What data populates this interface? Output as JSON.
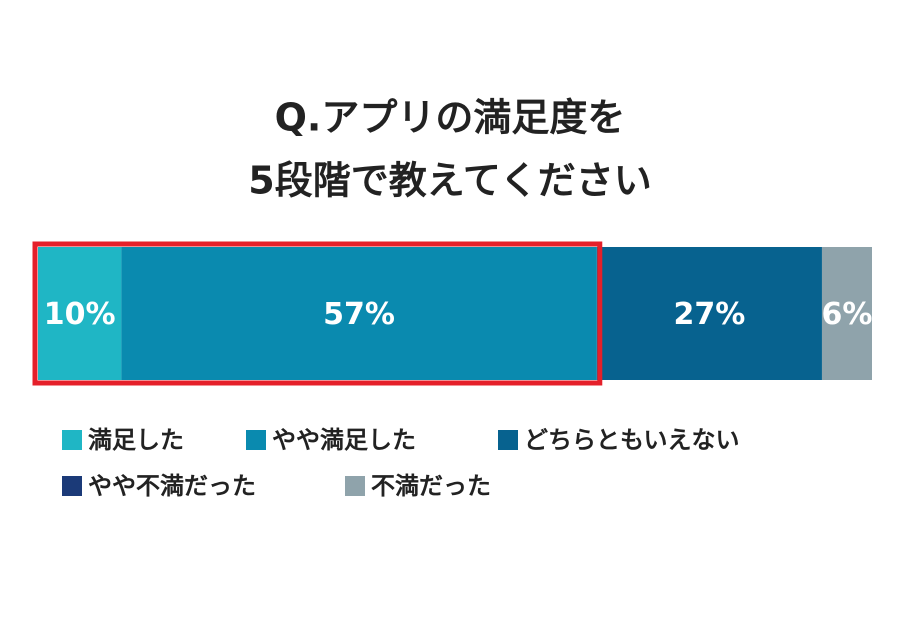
{
  "chart_data": {
    "type": "stacked-bar-horizontal",
    "title": [
      "Q.アプリの満足度を",
      "5段階で教えてください"
    ],
    "xlim": [
      0,
      100
    ],
    "series": [
      {
        "name": "満足した",
        "color": "#1fb6c5",
        "values": [
          10
        ],
        "value_labels": [
          "10%"
        ]
      },
      {
        "name": "やや満足した",
        "color": "#0a8aaf",
        "values": [
          57
        ],
        "value_labels": [
          "57%"
        ]
      },
      {
        "name": "どちらともいえない",
        "color": "#07628f",
        "values": [
          27
        ],
        "value_labels": [
          "27%"
        ]
      },
      {
        "name": "やや不満だった",
        "color": "#1b3a78",
        "values": [
          0
        ]
      },
      {
        "name": "不満だった",
        "color": "#8fa3ab",
        "values": [
          6
        ],
        "value_labels": [
          "6%"
        ]
      }
    ]
  }
}
